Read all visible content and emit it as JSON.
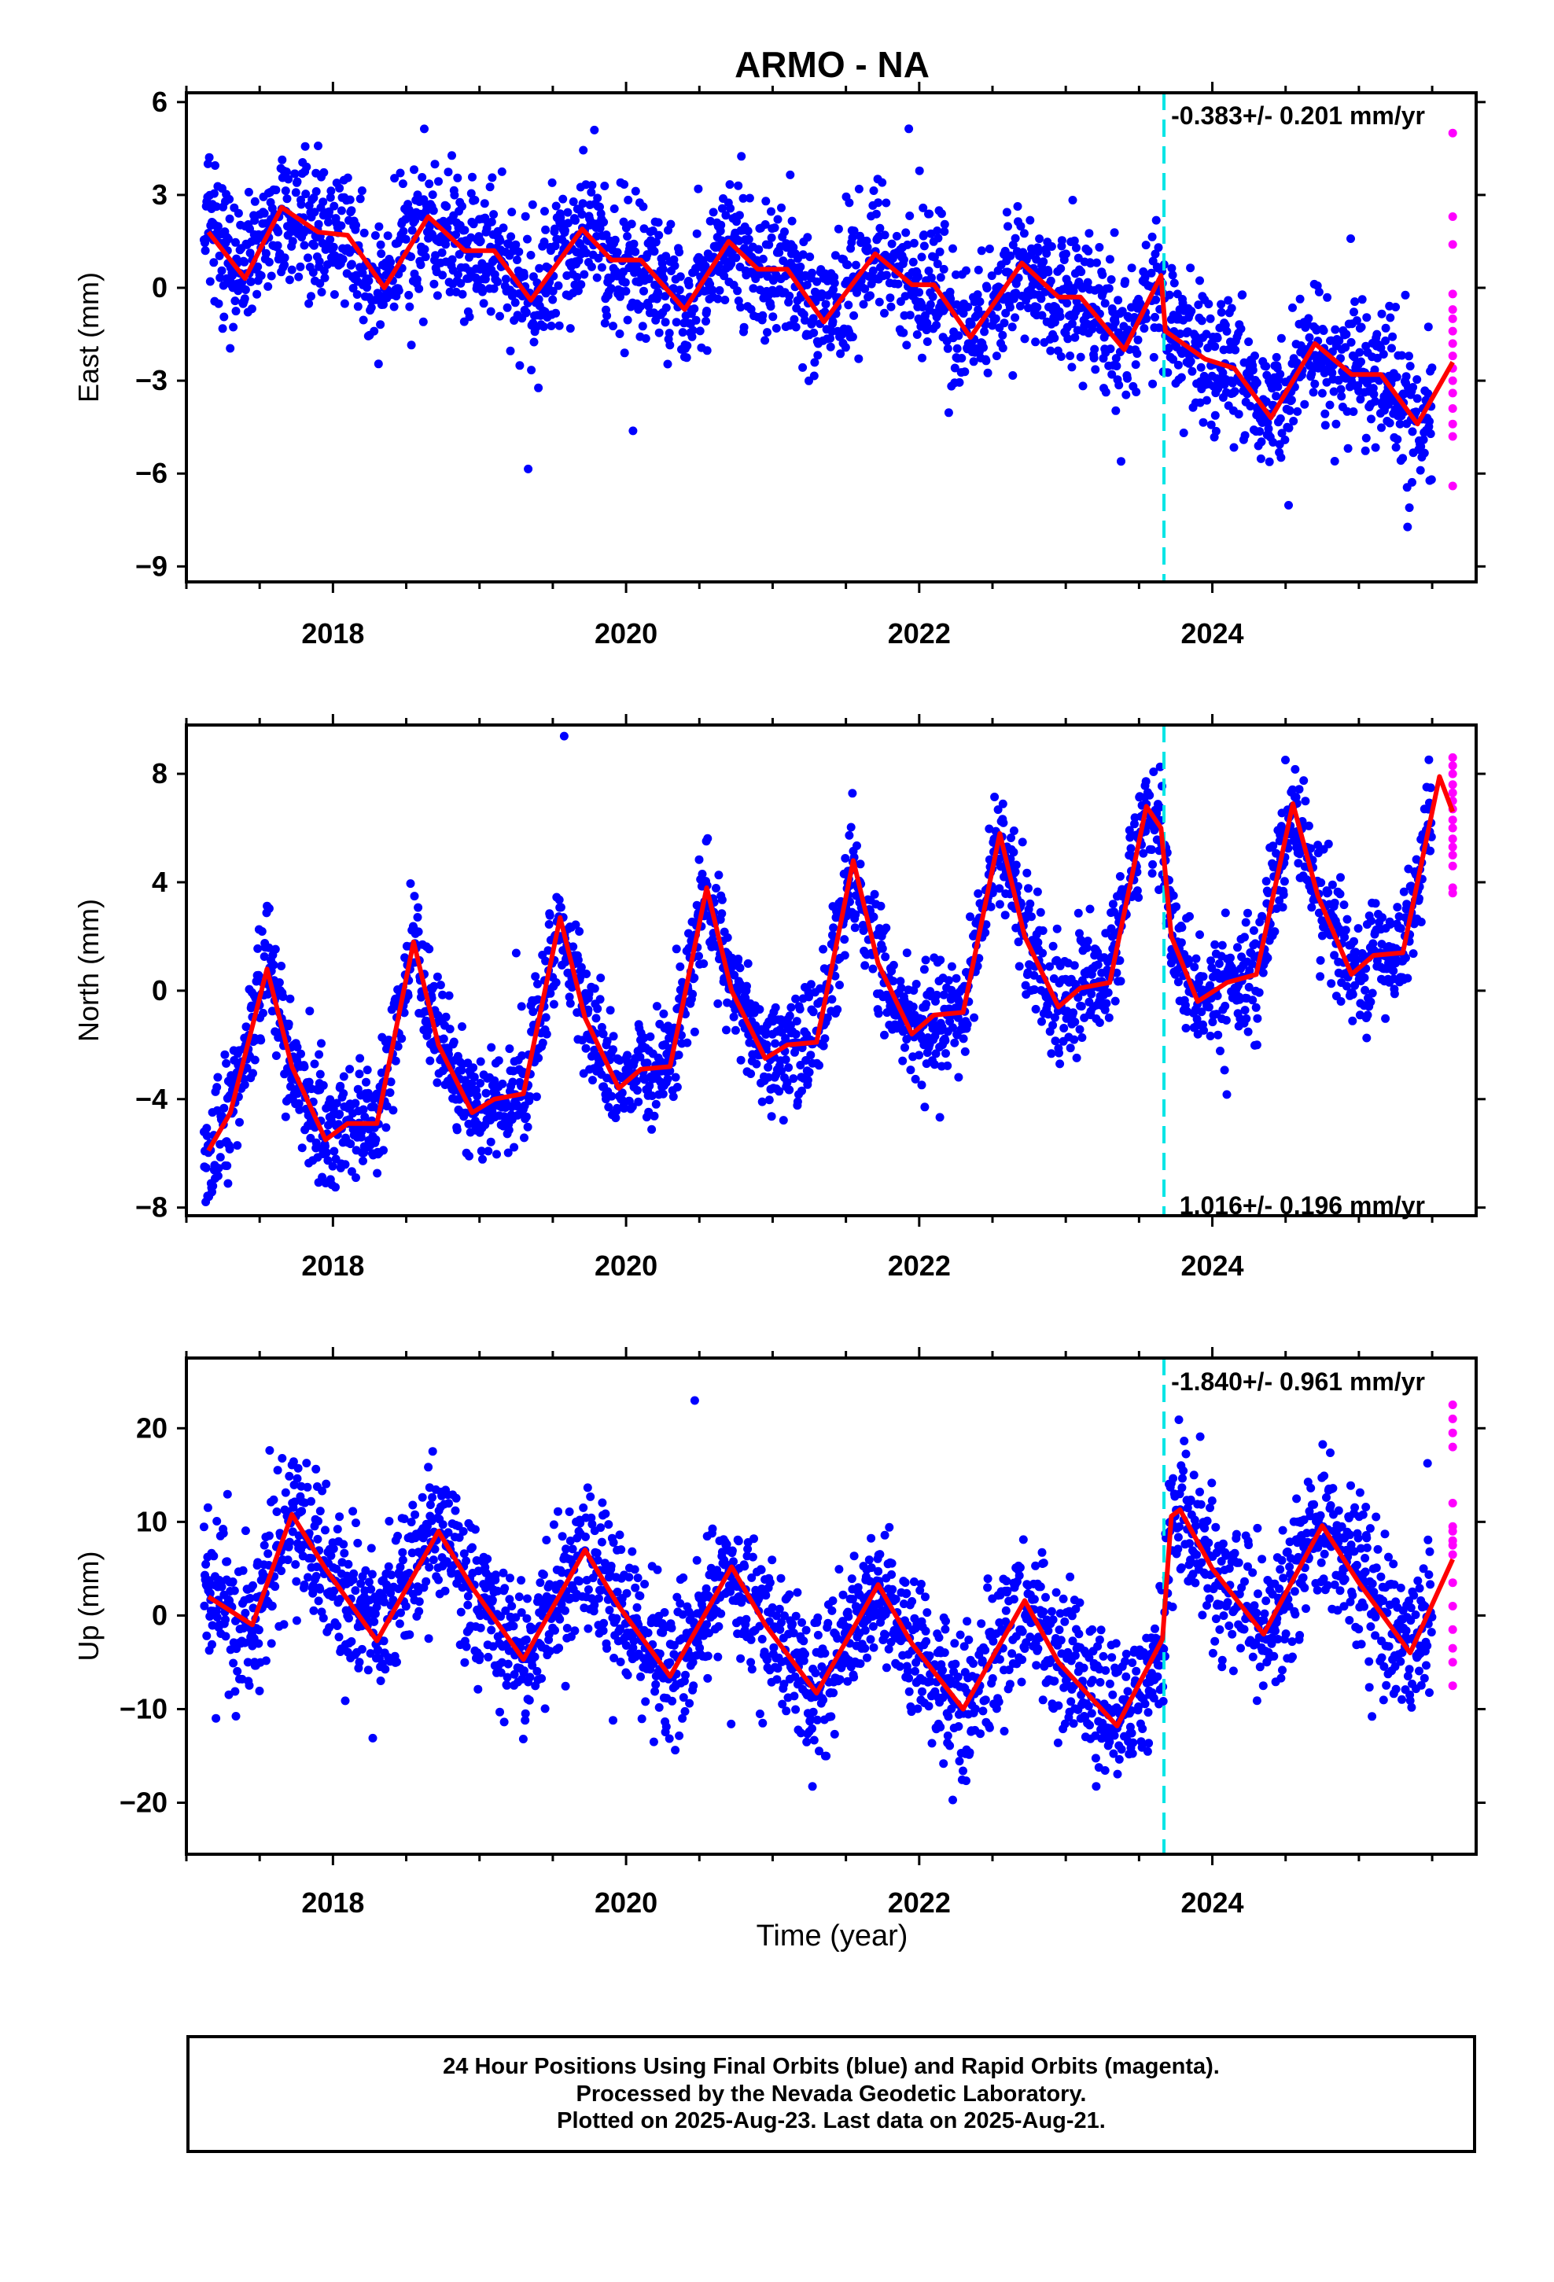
{
  "title": "ARMO - NA",
  "xlabel": "Time (year)",
  "footer": {
    "line1": "24 Hour Positions Using Final Orbits (blue) and Rapid Orbits (magenta).",
    "line2": "Processed by the Nevada Geodetic Laboratory.",
    "line3": "Plotted on 2025-Aug-23. Last data on 2025-Aug-21."
  },
  "colors": {
    "final_orbits": "#0000ff",
    "rapid_orbits": "#ff00ff",
    "fit": "#ff0000",
    "event_line": "#00e5e5"
  },
  "chart_data": [
    {
      "type": "scatter",
      "component": "east",
      "ylabel": "East (mm)",
      "rate_label": "-0.383+/- 0.201 mm/yr",
      "xlim": [
        2017.0,
        2025.8
      ],
      "ylim": [
        -9.5,
        6.3
      ],
      "x_ticks": [
        2018,
        2020,
        2022,
        2024
      ],
      "y_ticks": [
        6,
        3,
        0,
        -3,
        -6,
        -9
      ],
      "event_line_x": 2023.67,
      "series": [
        {
          "name": "Final Orbits",
          "color": "#0000ff",
          "x_range": [
            2017.12,
            2025.5
          ],
          "trend_mm_per_yr": -0.383,
          "annual_amplitude_mm": 1.0,
          "annual_peak_phase": 0.7,
          "scatter_sd_mm": 1.1,
          "offset_at_event_mm": -1.8,
          "value_at_start_mm": 1.6
        },
        {
          "name": "Rapid Orbits",
          "color": "#ff00ff",
          "x": 2025.64,
          "values": [
            5.0,
            2.3,
            1.4,
            -0.2,
            -0.7,
            -1.0,
            -1.4,
            -1.8,
            -2.2,
            -2.6,
            -3.0,
            -3.4,
            -3.9,
            -4.4,
            -4.8,
            -6.4
          ]
        }
      ],
      "fit_points": [
        [
          2017.15,
          1.8
        ],
        [
          2017.4,
          0.3
        ],
        [
          2017.65,
          2.6
        ],
        [
          2017.9,
          1.8
        ],
        [
          2018.1,
          1.7
        ],
        [
          2018.35,
          0.0
        ],
        [
          2018.65,
          2.3
        ],
        [
          2018.9,
          1.2
        ],
        [
          2019.1,
          1.2
        ],
        [
          2019.35,
          -0.4
        ],
        [
          2019.7,
          1.9
        ],
        [
          2019.9,
          0.9
        ],
        [
          2020.1,
          0.9
        ],
        [
          2020.4,
          -0.7
        ],
        [
          2020.7,
          1.5
        ],
        [
          2020.9,
          0.6
        ],
        [
          2021.1,
          0.6
        ],
        [
          2021.35,
          -1.1
        ],
        [
          2021.7,
          1.1
        ],
        [
          2021.95,
          0.1
        ],
        [
          2022.1,
          0.1
        ],
        [
          2022.35,
          -1.6
        ],
        [
          2022.7,
          0.8
        ],
        [
          2022.95,
          -0.3
        ],
        [
          2023.1,
          -0.3
        ],
        [
          2023.4,
          -2.0
        ],
        [
          2023.65,
          0.4
        ],
        [
          2023.68,
          -1.4
        ],
        [
          2023.95,
          -2.3
        ],
        [
          2024.15,
          -2.6
        ],
        [
          2024.4,
          -4.2
        ],
        [
          2024.7,
          -1.8
        ],
        [
          2024.95,
          -2.8
        ],
        [
          2025.15,
          -2.8
        ],
        [
          2025.4,
          -4.4
        ],
        [
          2025.64,
          -2.4
        ]
      ]
    },
    {
      "type": "scatter",
      "component": "north",
      "ylabel": "North (mm)",
      "rate_label": "1.016+/- 0.196 mm/yr",
      "xlim": [
        2017.0,
        2025.8
      ],
      "ylim": [
        -8.3,
        9.8
      ],
      "x_ticks": [
        2018,
        2020,
        2022,
        2024
      ],
      "y_ticks": [
        8,
        4,
        0,
        -4,
        -8
      ],
      "event_line_x": 2023.67,
      "series": [
        {
          "name": "Final Orbits",
          "color": "#0000ff",
          "x_range": [
            2017.12,
            2025.5
          ],
          "trend_mm_per_yr": 1.016,
          "annual_amplitude_mm": 3.0,
          "annual_peak_phase": 0.55,
          "scatter_sd_mm": 1.0,
          "offset_at_event_mm": -6.5,
          "value_at_start_mm": -6.0
        },
        {
          "name": "Rapid Orbits",
          "color": "#ff00ff",
          "x": 2025.64,
          "values": [
            8.6,
            8.3,
            8.0,
            7.6,
            7.3,
            7.0,
            6.7,
            6.3,
            6.0,
            5.6,
            5.3,
            5.0,
            4.6,
            3.8,
            3.6
          ]
        }
      ],
      "fit_points": [
        [
          2017.15,
          -5.9
        ],
        [
          2017.3,
          -4.5
        ],
        [
          2017.55,
          0.8
        ],
        [
          2017.72,
          -2.8
        ],
        [
          2017.95,
          -5.5
        ],
        [
          2018.1,
          -4.9
        ],
        [
          2018.3,
          -4.9
        ],
        [
          2018.55,
          1.8
        ],
        [
          2018.72,
          -2.0
        ],
        [
          2018.95,
          -4.5
        ],
        [
          2019.1,
          -4.0
        ],
        [
          2019.3,
          -3.8
        ],
        [
          2019.55,
          2.7
        ],
        [
          2019.72,
          -1.0
        ],
        [
          2019.95,
          -3.6
        ],
        [
          2020.1,
          -2.9
        ],
        [
          2020.3,
          -2.8
        ],
        [
          2020.55,
          3.8
        ],
        [
          2020.72,
          0.0
        ],
        [
          2020.95,
          -2.5
        ],
        [
          2021.1,
          -2.0
        ],
        [
          2021.3,
          -1.9
        ],
        [
          2021.55,
          4.8
        ],
        [
          2021.72,
          1.0
        ],
        [
          2021.95,
          -1.6
        ],
        [
          2022.1,
          -0.9
        ],
        [
          2022.3,
          -0.8
        ],
        [
          2022.55,
          5.8
        ],
        [
          2022.72,
          2.0
        ],
        [
          2022.95,
          -0.6
        ],
        [
          2023.1,
          0.1
        ],
        [
          2023.3,
          0.3
        ],
        [
          2023.55,
          6.8
        ],
        [
          2023.65,
          6.0
        ],
        [
          2023.72,
          2.0
        ],
        [
          2023.9,
          -0.4
        ],
        [
          2024.1,
          0.3
        ],
        [
          2024.3,
          0.6
        ],
        [
          2024.55,
          6.9
        ],
        [
          2024.72,
          3.5
        ],
        [
          2024.95,
          0.6
        ],
        [
          2025.1,
          1.3
        ],
        [
          2025.3,
          1.4
        ],
        [
          2025.55,
          7.9
        ],
        [
          2025.64,
          6.6
        ]
      ]
    },
    {
      "type": "scatter",
      "component": "up",
      "ylabel": "Up (mm)",
      "rate_label": "-1.840+/- 0.961 mm/yr",
      "xlim": [
        2017.0,
        2025.8
      ],
      "ylim": [
        -25.5,
        27.5
      ],
      "x_ticks": [
        2018,
        2020,
        2022,
        2024
      ],
      "y_ticks": [
        20,
        10,
        0,
        -10,
        -20
      ],
      "event_line_x": 2023.67,
      "series": [
        {
          "name": "Final Orbits",
          "color": "#0000ff",
          "x_range": [
            2017.12,
            2025.5
          ],
          "trend_mm_per_yr": -1.84,
          "annual_amplitude_mm": 6.5,
          "annual_peak_phase": 0.75,
          "scatter_sd_mm": 4.0,
          "offset_at_event_mm": 12.0,
          "value_at_start_mm": 2.0
        },
        {
          "name": "Rapid Orbits",
          "color": "#ff00ff",
          "x": 2025.64,
          "values": [
            22.5,
            21.0,
            19.5,
            18.0,
            12.0,
            9.5,
            9.0,
            8.0,
            7.5,
            6.5,
            3.5,
            1.0,
            -1.5,
            -3.5,
            -5.0,
            -7.5
          ]
        }
      ],
      "fit_points": [
        [
          2017.15,
          2.0
        ],
        [
          2017.45,
          -1.0
        ],
        [
          2017.72,
          10.8
        ],
        [
          2017.95,
          5.0
        ],
        [
          2018.3,
          -2.7
        ],
        [
          2018.72,
          9.0
        ],
        [
          2018.95,
          3.0
        ],
        [
          2019.3,
          -4.7
        ],
        [
          2019.72,
          7.0
        ],
        [
          2019.95,
          1.0
        ],
        [
          2020.3,
          -6.5
        ],
        [
          2020.72,
          5.2
        ],
        [
          2020.95,
          -1.0
        ],
        [
          2021.3,
          -8.3
        ],
        [
          2021.72,
          3.3
        ],
        [
          2021.95,
          -3.0
        ],
        [
          2022.3,
          -10.0
        ],
        [
          2022.72,
          1.6
        ],
        [
          2022.95,
          -5.0
        ],
        [
          2023.35,
          -11.8
        ],
        [
          2023.66,
          -2.5
        ],
        [
          2023.72,
          10.6
        ],
        [
          2023.78,
          11.3
        ],
        [
          2024.0,
          5.0
        ],
        [
          2024.35,
          -2.0
        ],
        [
          2024.75,
          9.6
        ],
        [
          2025.0,
          3.5
        ],
        [
          2025.35,
          -4.0
        ],
        [
          2025.64,
          6.0
        ]
      ]
    }
  ]
}
